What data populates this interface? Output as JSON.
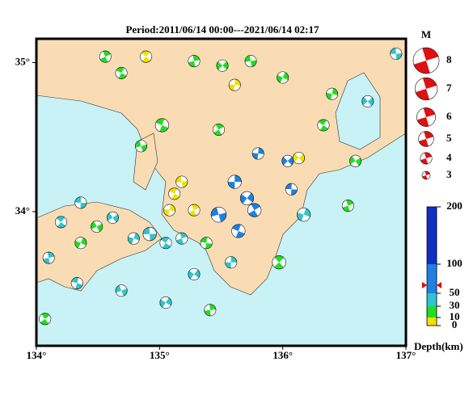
{
  "map": {
    "title": "Period:2011/06/14 00:00---2021/06/14 02:17",
    "xlim": [
      134,
      137
    ],
    "ylim": [
      33.1,
      35.16
    ],
    "xticks": [
      {
        "value": 134,
        "label": "134°"
      },
      {
        "value": 135,
        "label": "135°"
      },
      {
        "value": 136,
        "label": "136°"
      },
      {
        "value": 137,
        "label": "137°"
      }
    ],
    "yticks": [
      {
        "value": 34,
        "label": "34°"
      },
      {
        "value": 35,
        "label": "35°"
      }
    ],
    "magnitude_legend": {
      "title": "M",
      "values": [
        8,
        7,
        6,
        5,
        4,
        3
      ]
    },
    "depth_legend": {
      "title": "Depth(km)",
      "ticks": [
        0,
        10,
        30,
        50,
        100,
        200
      ]
    },
    "events": {
      "lon": [
        135.61,
        135.71,
        135.48,
        135.64,
        135.77,
        135.8,
        136.04,
        135.18,
        135.12,
        135.28,
        135.08,
        136.13,
        134.92,
        135.05,
        135.18,
        134.79,
        134.62,
        134.36,
        134.2,
        134.1,
        134.36,
        134.49,
        135.38,
        135.97,
        135.41,
        135.05,
        134.69,
        134.33,
        134.07,
        135.58,
        135.28,
        134.85,
        135.02,
        135.48,
        135.61,
        135.51,
        135.74,
        134.69,
        134.56,
        136.4,
        136.69,
        136.92,
        136.33,
        136.53,
        136.17,
        136.59,
        136.07,
        134.89,
        135.28,
        136.0
      ],
      "lat": [
        34.2,
        34.09,
        33.98,
        33.87,
        34.01,
        34.39,
        34.34,
        34.2,
        34.12,
        34.01,
        34.01,
        34.36,
        33.85,
        33.79,
        33.82,
        33.82,
        33.96,
        34.06,
        33.93,
        33.69,
        33.79,
        33.9,
        33.79,
        33.66,
        33.34,
        33.39,
        33.47,
        33.52,
        33.28,
        33.66,
        33.58,
        34.44,
        34.58,
        34.55,
        34.85,
        34.98,
        35.01,
        34.93,
        35.04,
        34.79,
        34.74,
        35.06,
        34.58,
        34.04,
        33.98,
        34.34,
        34.15,
        35.04,
        35.01,
        34.9
      ],
      "depth": [
        60,
        60,
        60,
        60,
        60,
        60,
        60,
        5,
        5,
        5,
        5,
        5,
        40,
        40,
        40,
        40,
        40,
        40,
        40,
        40,
        15,
        15,
        15,
        15,
        15,
        40,
        40,
        40,
        15,
        40,
        40,
        15,
        15,
        15,
        5,
        15,
        15,
        15,
        15,
        15,
        40,
        40,
        15,
        15,
        40,
        15,
        60,
        5,
        15,
        15
      ],
      "mag": [
        4.5,
        4.5,
        5,
        4.5,
        4.5,
        4,
        4,
        4,
        4,
        4,
        4,
        4,
        4.5,
        4,
        4,
        4,
        4,
        4,
        4,
        4,
        4,
        4,
        4,
        4.5,
        4,
        4,
        4,
        4,
        4,
        4,
        4,
        4,
        4.5,
        4,
        4,
        4,
        4,
        4,
        4,
        4,
        4,
        4,
        4,
        4,
        4.5,
        4,
        4,
        4,
        4,
        4
      ]
    }
  }
}
